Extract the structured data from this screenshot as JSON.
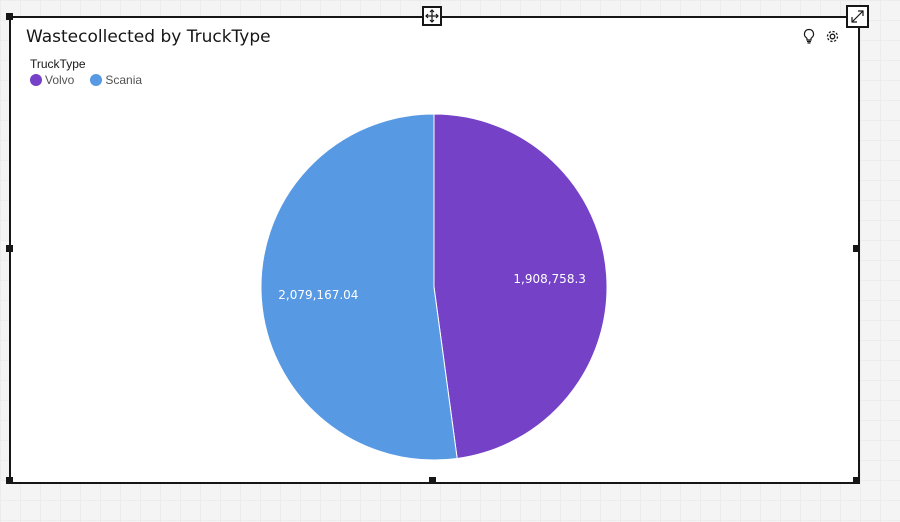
{
  "widget": {
    "title": "Wastecollected by TruckType"
  },
  "legend": {
    "title": "TruckType",
    "items": [
      {
        "label": "Volvo",
        "color": "#7441c7"
      },
      {
        "label": "Scania",
        "color": "#5799e3"
      }
    ]
  },
  "icons": {
    "insight": "lightbulb-icon",
    "settings": "gear-icon",
    "move": "move-icon",
    "expand": "expand-icon"
  },
  "chart_data": {
    "type": "pie",
    "title": "Wastecollected by TruckType",
    "legend_title": "TruckType",
    "legend_placement": "top-left",
    "categories": [
      "Volvo",
      "Scania"
    ],
    "values": [
      1908758.3,
      2079167.04
    ],
    "value_labels": [
      "1,908,758.3",
      "2,079,167.04"
    ],
    "colors": [
      "#7441c7",
      "#5799e3"
    ]
  }
}
